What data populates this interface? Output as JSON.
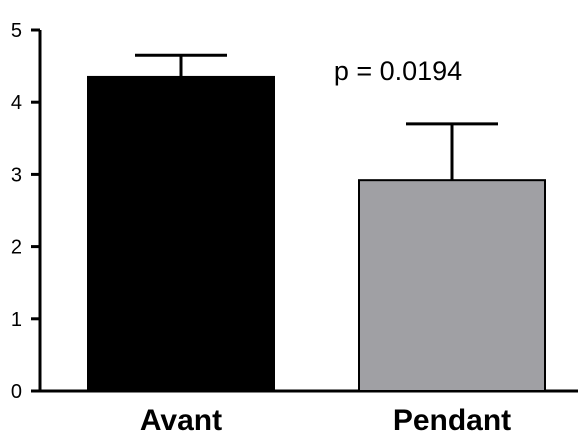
{
  "chart_data": {
    "type": "bar",
    "categories": [
      "Avant",
      "Pendant"
    ],
    "values": [
      4.35,
      2.92
    ],
    "error_upper": [
      4.65,
      3.7
    ],
    "colors": [
      "#000000",
      "#a0a0a4"
    ],
    "ylim": [
      0,
      5
    ],
    "yticks": [
      "0",
      "1",
      "2",
      "3",
      "4",
      "5"
    ],
    "annotation": "p = 0.0194",
    "grid": false,
    "legend": "none"
  }
}
